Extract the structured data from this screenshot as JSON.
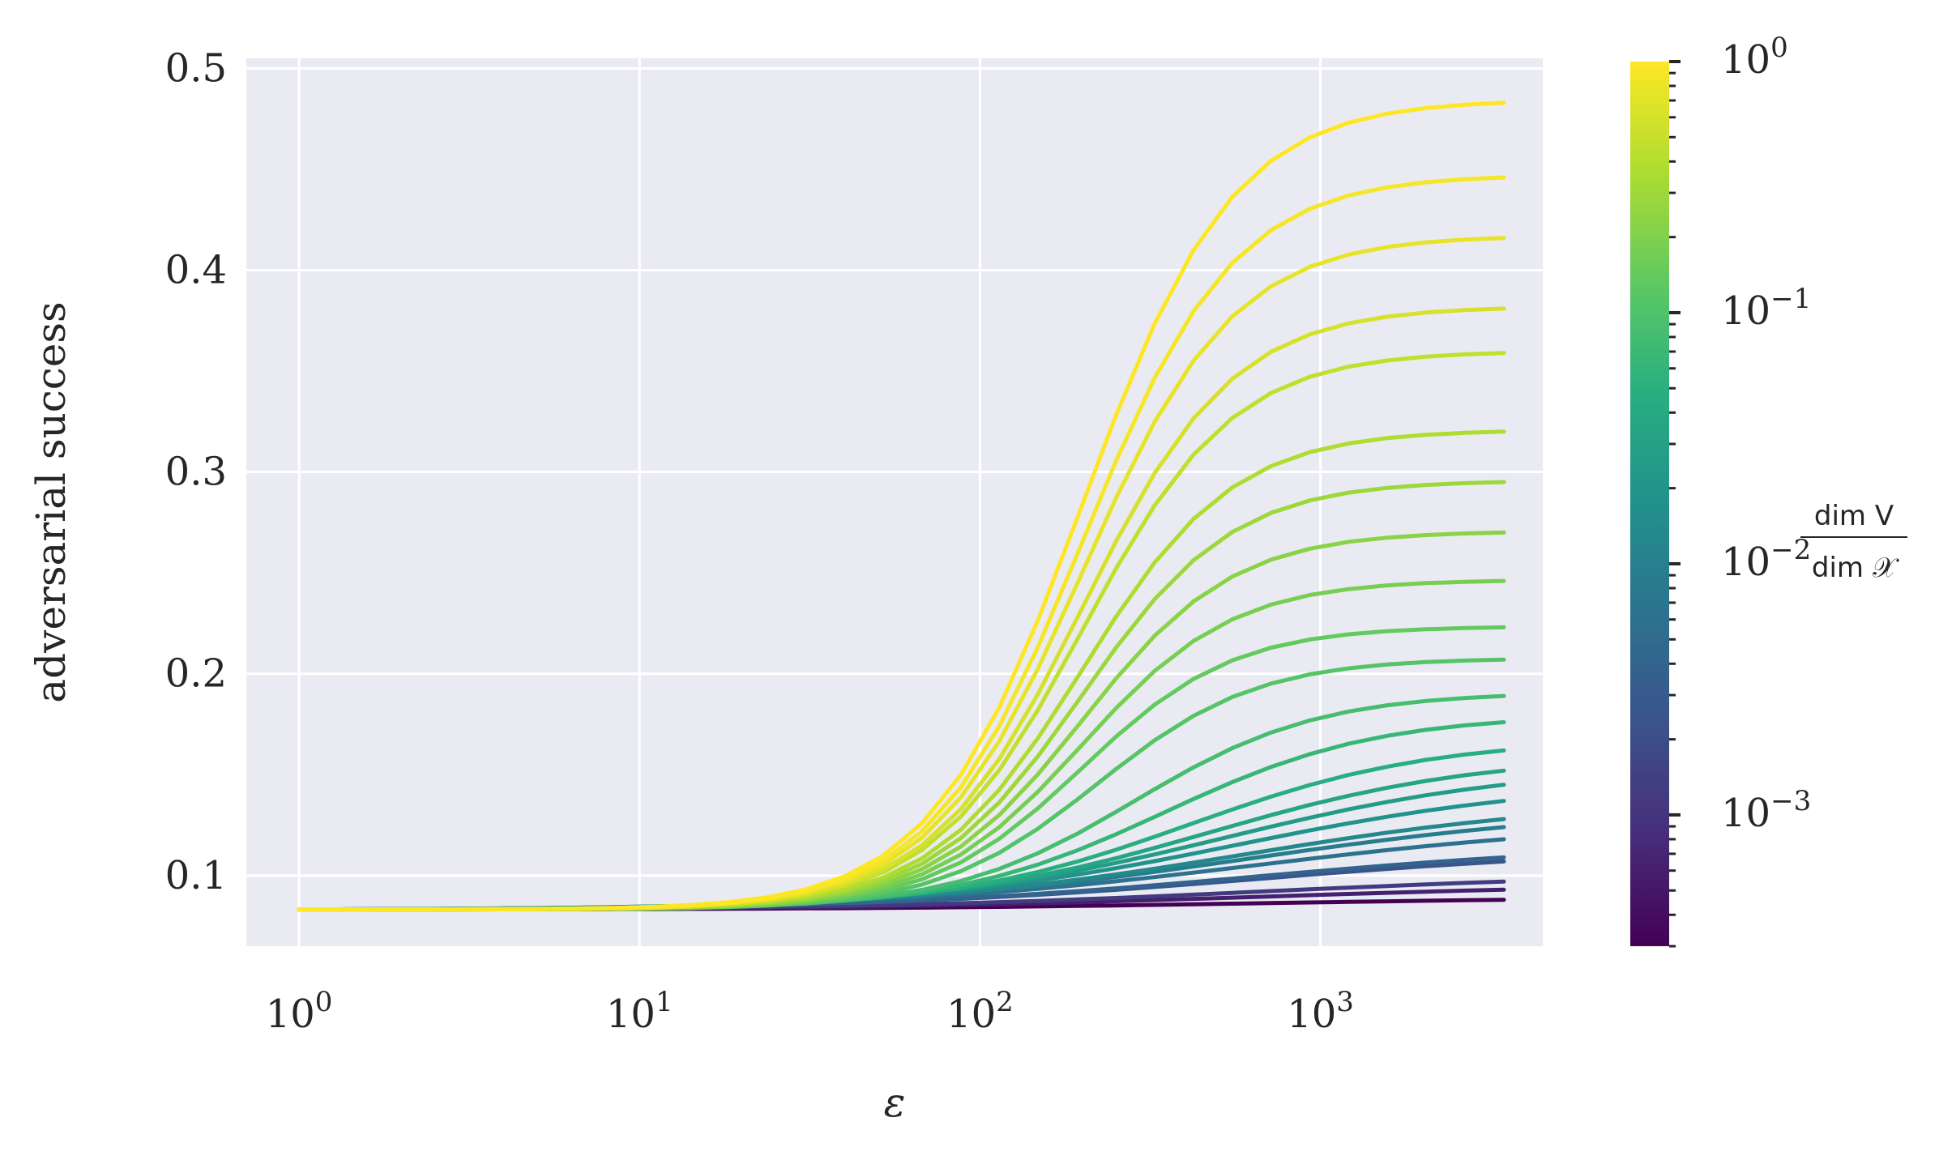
{
  "chart_data": {
    "type": "line",
    "xlabel": "ε",
    "ylabel": "adversarial success",
    "xscale": "log",
    "xlim": [
      0.7,
      4500
    ],
    "ylim": [
      0.065,
      0.505
    ],
    "grid": true,
    "x": [
      1,
      1.3,
      1.7,
      2.2,
      2.9,
      3.8,
      4.9,
      6.4,
      8.3,
      10.8,
      14,
      18.2,
      23.7,
      30.8,
      40,
      52,
      67.6,
      87.9,
      114,
      148,
      193,
      251,
      326,
      424,
      551,
      716,
      931,
      1210,
      1570,
      2040,
      2660,
      3460
    ],
    "x_ticks": [
      {
        "value": 1,
        "base": "10",
        "exp": "0"
      },
      {
        "value": 10,
        "base": "10",
        "exp": "1"
      },
      {
        "value": 100,
        "base": "10",
        "exp": "2"
      },
      {
        "value": 1000,
        "base": "10",
        "exp": "3"
      }
    ],
    "y_ticks": [
      {
        "value": 0.1,
        "label": "0.1"
      },
      {
        "value": 0.2,
        "label": "0.2"
      },
      {
        "value": 0.3,
        "label": "0.3"
      },
      {
        "value": 0.4,
        "label": "0.4"
      },
      {
        "value": 0.5,
        "label": "0.5"
      }
    ],
    "x_base": 0.0832,
    "mid_fraction": 0.3,
    "mid_ratio": 0.12,
    "colormap": "viridis",
    "series": [
      {
        "ratio": 0.0003,
        "final": 0.088
      },
      {
        "ratio": 0.0006,
        "final": 0.093
      },
      {
        "ratio": 0.0012,
        "final": 0.097
      },
      {
        "ratio": 0.0025,
        "final": 0.107
      },
      {
        "ratio": 0.004,
        "final": 0.109
      },
      {
        "ratio": 0.006,
        "final": 0.118
      },
      {
        "ratio": 0.009,
        "final": 0.124
      },
      {
        "ratio": 0.013,
        "final": 0.128
      },
      {
        "ratio": 0.018,
        "final": 0.137
      },
      {
        "ratio": 0.025,
        "final": 0.145
      },
      {
        "ratio": 0.035,
        "final": 0.152
      },
      {
        "ratio": 0.048,
        "final": 0.162
      },
      {
        "ratio": 0.065,
        "final": 0.176
      },
      {
        "ratio": 0.085,
        "final": 0.189
      },
      {
        "ratio": 0.11,
        "final": 0.207
      },
      {
        "ratio": 0.14,
        "final": 0.223
      },
      {
        "ratio": 0.18,
        "final": 0.246
      },
      {
        "ratio": 0.23,
        "final": 0.27
      },
      {
        "ratio": 0.29,
        "final": 0.295
      },
      {
        "ratio": 0.37,
        "final": 0.32
      },
      {
        "ratio": 0.47,
        "final": 0.359
      },
      {
        "ratio": 0.6,
        "final": 0.381
      },
      {
        "ratio": 0.76,
        "final": 0.416
      },
      {
        "ratio": 0.9,
        "final": 0.446
      },
      {
        "ratio": 1.0,
        "final": 0.483
      }
    ],
    "colorbar": {
      "scale": "log",
      "range": [
        0.0003,
        1.0
      ],
      "title_numerator": "dim V",
      "title_denominator": "dim 𝒳",
      "ticks": [
        {
          "value": 1,
          "base": "10",
          "exp": "0"
        },
        {
          "value": 0.1,
          "base": "10",
          "exp": "−1"
        },
        {
          "value": 0.01,
          "base": "10",
          "exp": "−2"
        },
        {
          "value": 0.001,
          "base": "10",
          "exp": "−3"
        }
      ]
    }
  },
  "colors": {
    "plot_background": "#eaeaf2",
    "grid": "#ffffff",
    "text": "#262626"
  }
}
